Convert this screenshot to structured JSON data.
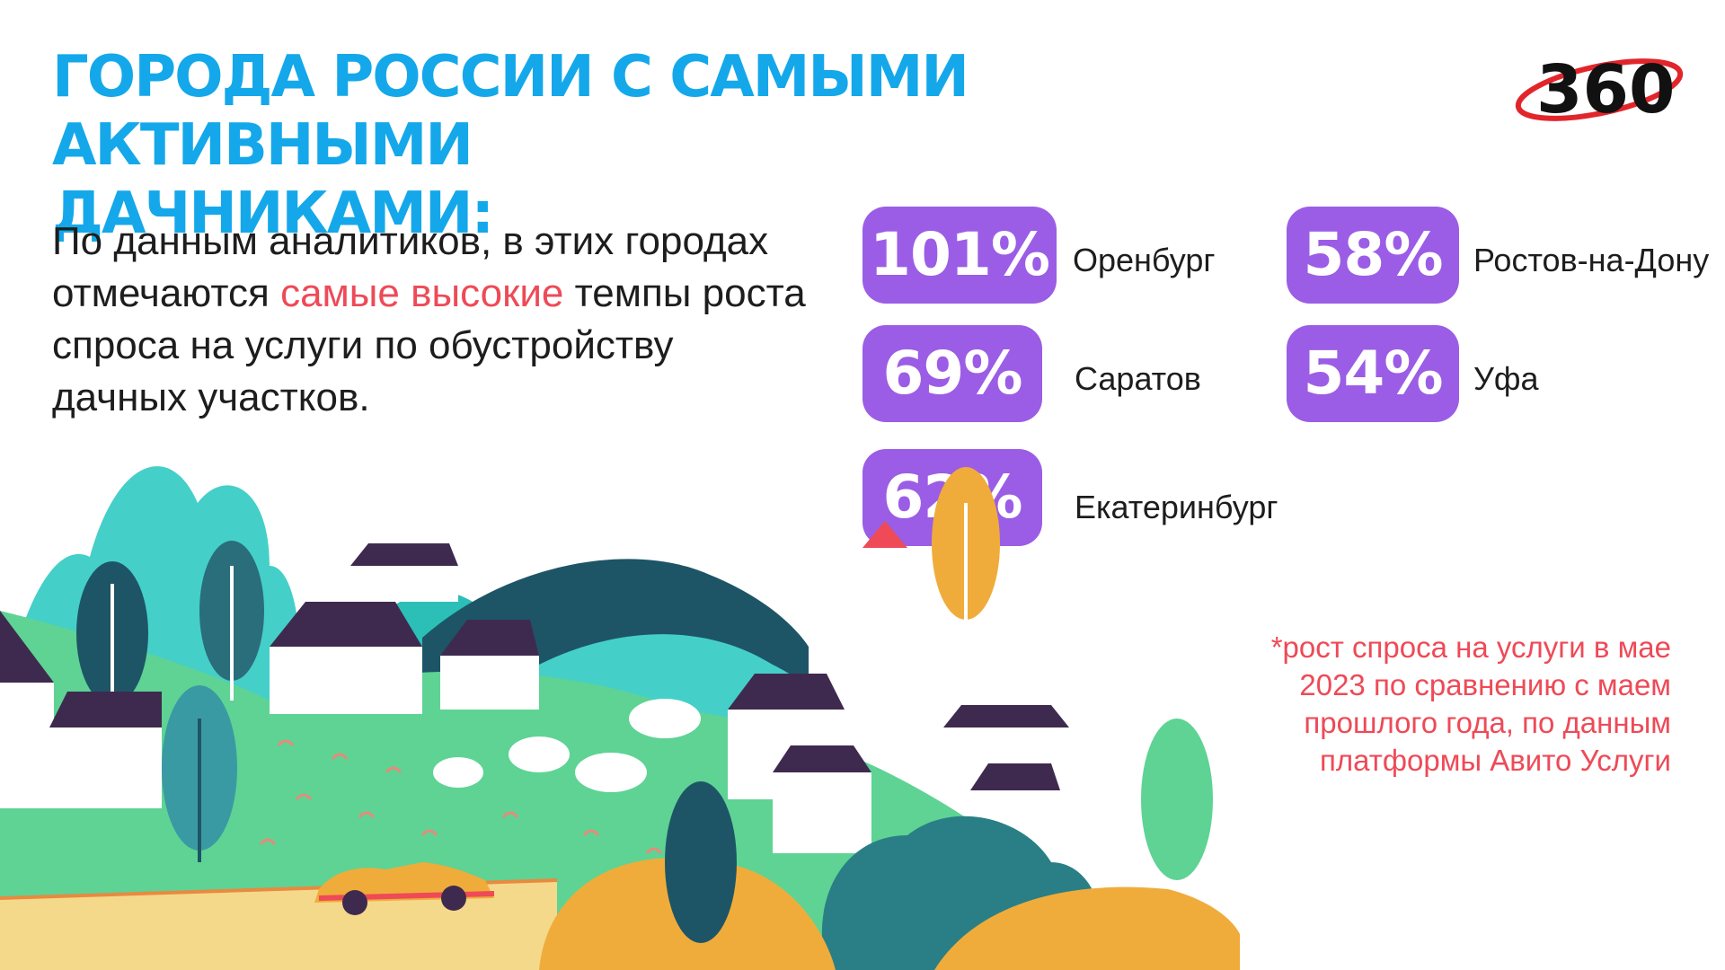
{
  "title": {
    "line1": "ГОРОДА РОССИИ С САМЫМИ АКТИВНЫМИ",
    "line2": "ДАЧНИКАМИ:"
  },
  "logo": {
    "text": "360",
    "icon": "360-logo"
  },
  "intro": {
    "before": "По данным аналитиков, в этих городах отмечаются ",
    "highlight": "самые высокие",
    "after": " темпы роста спроса на услуги по обустройству дачных участков."
  },
  "cities": [
    {
      "percent": "101%",
      "name": "Оренбург"
    },
    {
      "percent": "69%",
      "name": "Саратов"
    },
    {
      "percent": "62%",
      "name": "Екатеринбург"
    },
    {
      "percent": "58%",
      "name": "Ростов-на-Дону"
    },
    {
      "percent": "54%",
      "name": "Уфа"
    }
  ],
  "footnote": "*рост спроса на услуги в мае 2023 по сравнению с маем прошлого года, по данным платформы Авито Услуги",
  "colors": {
    "title": "#14a8ea",
    "badge": "#9b5de5",
    "accent": "#ee4a57",
    "hill_green": "#5ed394",
    "teal": "#45cfc9",
    "dark_teal": "#1d5567",
    "orange": "#f0ac3a",
    "roof": "#3f2a4f"
  }
}
